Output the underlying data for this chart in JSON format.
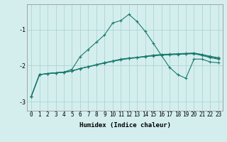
{
  "xlabel": "Humidex (Indice chaleur)",
  "bg_color": "#d4eeee",
  "grid_color": "#aed4d4",
  "line_color": "#1a7a6e",
  "x_values": [
    0,
    1,
    2,
    3,
    4,
    5,
    6,
    7,
    8,
    9,
    10,
    11,
    12,
    13,
    14,
    15,
    16,
    17,
    18,
    19,
    20,
    21,
    22,
    23
  ],
  "curve1": [
    -2.85,
    -2.25,
    -2.22,
    -2.2,
    -2.18,
    -2.1,
    -1.75,
    -1.55,
    -1.35,
    -1.15,
    -0.82,
    -0.75,
    -0.58,
    -0.78,
    -1.05,
    -1.38,
    -1.72,
    -2.05,
    -2.25,
    -2.35,
    -1.82,
    -1.82,
    -1.9,
    -1.92
  ],
  "curve2": [
    -2.85,
    -2.25,
    -2.22,
    -2.2,
    -2.18,
    -2.15,
    -2.08,
    -2.03,
    -1.98,
    -1.93,
    -1.88,
    -1.84,
    -1.8,
    -1.78,
    -1.75,
    -1.73,
    -1.71,
    -1.7,
    -1.69,
    -1.68,
    -1.67,
    -1.72,
    -1.78,
    -1.82
  ],
  "curve3": [
    -2.85,
    -2.25,
    -2.22,
    -2.2,
    -2.18,
    -2.15,
    -2.08,
    -2.03,
    -1.98,
    -1.92,
    -1.88,
    -1.83,
    -1.8,
    -1.78,
    -1.75,
    -1.72,
    -1.7,
    -1.69,
    -1.68,
    -1.67,
    -1.66,
    -1.7,
    -1.76,
    -1.8
  ],
  "curve4": [
    -2.85,
    -2.25,
    -2.22,
    -2.2,
    -2.18,
    -2.15,
    -2.08,
    -2.03,
    -1.97,
    -1.92,
    -1.87,
    -1.82,
    -1.79,
    -1.77,
    -1.74,
    -1.71,
    -1.69,
    -1.68,
    -1.67,
    -1.66,
    -1.65,
    -1.69,
    -1.74,
    -1.78
  ],
  "ylim": [
    -3.25,
    -0.3
  ],
  "xlim": [
    -0.5,
    23.5
  ],
  "yticks": [
    -3,
    -2,
    -1
  ],
  "xticks": [
    0,
    1,
    2,
    3,
    4,
    5,
    6,
    7,
    8,
    9,
    10,
    11,
    12,
    13,
    14,
    15,
    16,
    17,
    18,
    19,
    20,
    21,
    22,
    23
  ],
  "tick_fontsize": 5.5,
  "label_fontsize": 6.5
}
